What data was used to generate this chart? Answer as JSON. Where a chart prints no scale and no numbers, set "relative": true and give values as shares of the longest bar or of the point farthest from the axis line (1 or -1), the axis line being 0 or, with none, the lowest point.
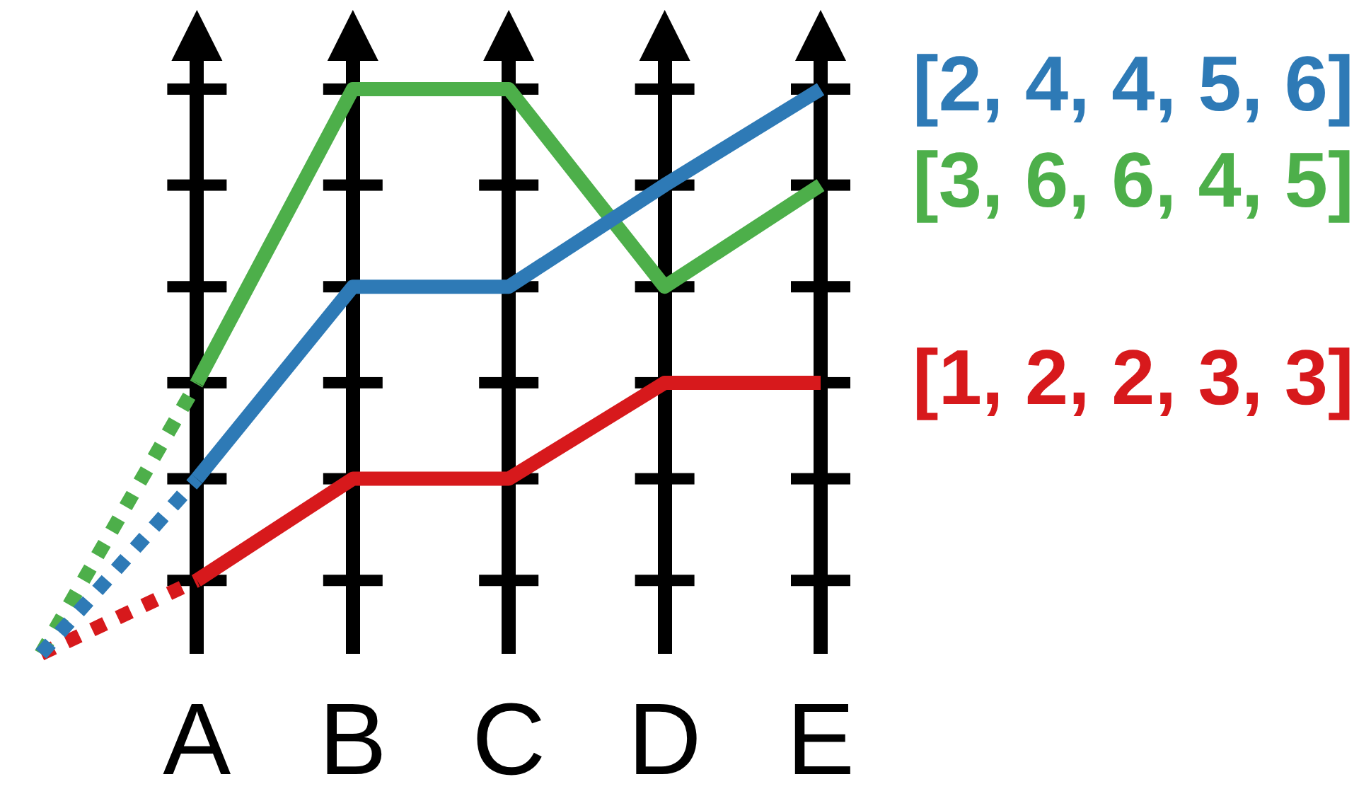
{
  "chart_data": {
    "type": "line",
    "relative": true,
    "categories": [
      null,
      "A",
      "B",
      "C",
      "D",
      "E"
    ],
    "series": [
      {
        "name": "[2, 4, 4, 5, 6]",
        "color": "#2e7ab6",
        "values": [
          null,
          0.31,
          0.65,
          0.65,
          0.83,
          1
        ],
        "line_style": "solid"
      },
      {
        "name": "[3, 6, 6, 4, 5]",
        "color": "#4daf4a",
        "values": [
          null,
          0.48,
          1,
          1,
          0.65,
          0.83
        ],
        "line_style": "solid"
      },
      {
        "name": "[1, 2, 2, 3, 3]",
        "color": "#d7191c",
        "values": [
          null,
          0.13,
          0.31,
          0.31,
          0.48,
          0.48
        ],
        "line_style": "solid"
      },
      {
        "color": "#2e7ab6",
        "values": [
          0,
          0.31,
          null,
          null,
          null,
          null
        ],
        "line_style": "dotted"
      },
      {
        "color": "#4daf4a",
        "values": [
          0,
          0.48,
          null,
          null,
          null,
          null
        ],
        "line_style": "dotted"
      },
      {
        "color": "#d7191c",
        "values": [
          0,
          0.13,
          null,
          null,
          null,
          null
        ],
        "line_style": "dotted"
      }
    ],
    "grid": "x",
    "legend": false,
    "marker": "none"
  }
}
